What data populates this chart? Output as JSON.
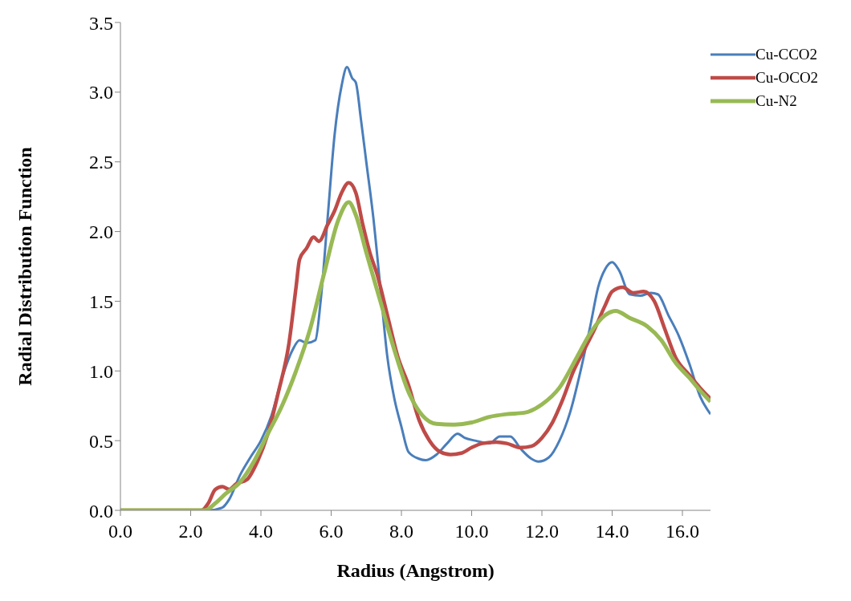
{
  "chart_data": {
    "type": "line",
    "xlabel": "Radius (Angstrom)",
    "ylabel": "Radial Distribution Function",
    "xlim": [
      0,
      16.8
    ],
    "xticks": [
      {
        "value": 0,
        "label": "0.0"
      },
      {
        "value": 2,
        "label": "2.0"
      },
      {
        "value": 4,
        "label": "4.0"
      },
      {
        "value": 6,
        "label": "6.0"
      },
      {
        "value": 8,
        "label": "8.0"
      },
      {
        "value": 10,
        "label": "10.0"
      },
      {
        "value": 12,
        "label": "12.0"
      },
      {
        "value": 14,
        "label": "14.0"
      },
      {
        "value": 16,
        "label": "16.0"
      }
    ],
    "ylim": [
      0,
      3.5
    ],
    "yticks": [
      {
        "value": 0,
        "label": "0.0"
      },
      {
        "value": 0.5,
        "label": "0.5"
      },
      {
        "value": 1,
        "label": "1.0"
      },
      {
        "value": 1.5,
        "label": "1.5"
      },
      {
        "value": 2,
        "label": "2.0"
      },
      {
        "value": 2.5,
        "label": "2.5"
      },
      {
        "value": 3,
        "label": "3.0"
      },
      {
        "value": 3.5,
        "label": "3.5"
      }
    ],
    "grid": false,
    "legend": "top right",
    "marker": "none",
    "line_style": "solid",
    "series": [
      {
        "name": "Cu-CCO2",
        "color": "#4a7ebb",
        "x": [
          0,
          2.5,
          2.9,
          3.1,
          3.4,
          3.7,
          4.0,
          4.3,
          4.6,
          4.9,
          5.1,
          5.3,
          5.55,
          5.7,
          5.9,
          6.1,
          6.3,
          6.45,
          6.6,
          6.7,
          6.85,
          7.0,
          7.2,
          7.4,
          7.6,
          7.8,
          8.0,
          8.2,
          8.5,
          8.7,
          9.0,
          9.3,
          9.6,
          9.8,
          10.1,
          10.5,
          10.8,
          11.1,
          11.4,
          11.7,
          11.9,
          12.2,
          12.5,
          12.8,
          13.1,
          13.4,
          13.6,
          13.8,
          14.0,
          14.2,
          14.5,
          14.8,
          15.1,
          15.3,
          15.6,
          15.9,
          16.2,
          16.5,
          16.8
        ],
        "values": [
          0,
          0,
          0.02,
          0.08,
          0.25,
          0.38,
          0.5,
          0.68,
          0.95,
          1.15,
          1.22,
          1.2,
          1.22,
          1.5,
          2.1,
          2.7,
          3.05,
          3.18,
          3.1,
          3.07,
          2.8,
          2.5,
          2.1,
          1.6,
          1.1,
          0.8,
          0.6,
          0.42,
          0.37,
          0.36,
          0.4,
          0.48,
          0.55,
          0.52,
          0.5,
          0.48,
          0.53,
          0.53,
          0.44,
          0.37,
          0.35,
          0.38,
          0.5,
          0.7,
          1.0,
          1.35,
          1.6,
          1.73,
          1.78,
          1.72,
          1.55,
          1.54,
          1.56,
          1.55,
          1.4,
          1.25,
          1.05,
          0.82,
          0.69
        ]
      },
      {
        "name": "Cu-OCO2",
        "color": "#be4b48",
        "x": [
          0,
          2.3,
          2.5,
          2.7,
          2.9,
          3.1,
          3.3,
          3.6,
          3.9,
          4.2,
          4.5,
          4.8,
          5.0,
          5.1,
          5.3,
          5.5,
          5.65,
          5.9,
          6.1,
          6.3,
          6.5,
          6.7,
          6.9,
          7.1,
          7.3,
          7.6,
          7.9,
          8.2,
          8.5,
          8.8,
          9.1,
          9.4,
          9.7,
          10.0,
          10.3,
          10.7,
          11.0,
          11.4,
          11.7,
          12.0,
          12.3,
          12.6,
          12.9,
          13.2,
          13.5,
          13.8,
          14.0,
          14.3,
          14.6,
          14.9,
          15.2,
          15.5,
          15.8,
          16.2,
          16.5,
          16.8
        ],
        "values": [
          0,
          0,
          0.05,
          0.15,
          0.17,
          0.15,
          0.19,
          0.22,
          0.35,
          0.55,
          0.85,
          1.2,
          1.6,
          1.8,
          1.88,
          1.96,
          1.93,
          2.05,
          2.15,
          2.28,
          2.35,
          2.28,
          2.05,
          1.85,
          1.7,
          1.4,
          1.1,
          0.9,
          0.65,
          0.5,
          0.42,
          0.4,
          0.41,
          0.45,
          0.48,
          0.49,
          0.48,
          0.45,
          0.46,
          0.52,
          0.63,
          0.8,
          1.0,
          1.15,
          1.3,
          1.47,
          1.57,
          1.6,
          1.56,
          1.57,
          1.5,
          1.3,
          1.1,
          0.97,
          0.88,
          0.8
        ]
      },
      {
        "name": "Cu-N2",
        "color": "#98b954",
        "x": [
          0,
          2.4,
          2.7,
          3.0,
          3.4,
          3.8,
          4.2,
          4.6,
          5.0,
          5.4,
          5.8,
          6.2,
          6.5,
          6.7,
          7.0,
          7.4,
          7.8,
          8.2,
          8.6,
          9.0,
          9.5,
          10.0,
          10.5,
          11.0,
          11.5,
          12.0,
          12.5,
          13.0,
          13.4,
          13.8,
          14.1,
          14.5,
          15.0,
          15.4,
          15.8,
          16.2,
          16.5,
          16.8
        ],
        "values": [
          0,
          0,
          0.05,
          0.12,
          0.2,
          0.35,
          0.55,
          0.75,
          1.0,
          1.3,
          1.7,
          2.08,
          2.21,
          2.12,
          1.85,
          1.5,
          1.15,
          0.85,
          0.68,
          0.62,
          0.615,
          0.63,
          0.67,
          0.69,
          0.7,
          0.76,
          0.88,
          1.1,
          1.28,
          1.4,
          1.43,
          1.38,
          1.32,
          1.22,
          1.06,
          0.95,
          0.86,
          0.78
        ]
      }
    ]
  }
}
